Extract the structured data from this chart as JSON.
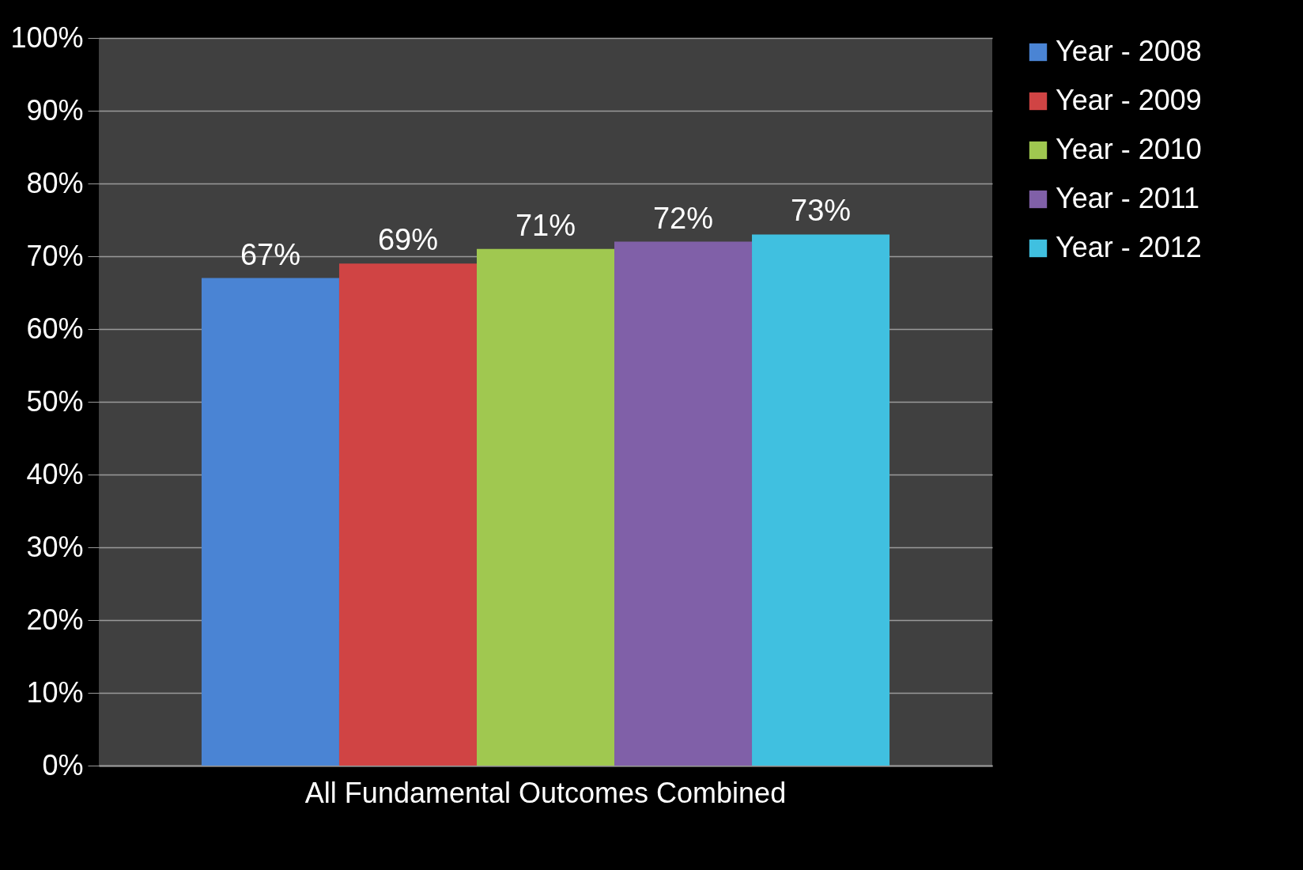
{
  "chart_data": {
    "type": "bar",
    "categories": [
      "All Fundamental Outcomes Combined"
    ],
    "series": [
      {
        "name": "Year - 2008",
        "color": "#4a84d4",
        "values": [
          67
        ],
        "value_labels": [
          "67%"
        ]
      },
      {
        "name": "Year - 2009",
        "color": "#d04444",
        "values": [
          69
        ],
        "value_labels": [
          "69%"
        ]
      },
      {
        "name": "Year - 2010",
        "color": "#a0c850",
        "values": [
          71
        ],
        "value_labels": [
          "71%"
        ]
      },
      {
        "name": "Year - 2011",
        "color": "#8060a8",
        "values": [
          72
        ],
        "value_labels": [
          "72%"
        ]
      },
      {
        "name": "Year - 2012",
        "color": "#40c0e0",
        "values": [
          73
        ],
        "value_labels": [
          "73%"
        ]
      }
    ],
    "ylim": [
      0,
      100
    ],
    "yticks": [
      {
        "value": 0,
        "label": "0%"
      },
      {
        "value": 10,
        "label": "10%"
      },
      {
        "value": 20,
        "label": "20%"
      },
      {
        "value": 30,
        "label": "30%"
      },
      {
        "value": 40,
        "label": "40%"
      },
      {
        "value": 50,
        "label": "50%"
      },
      {
        "value": 60,
        "label": "60%"
      },
      {
        "value": 70,
        "label": "70%"
      },
      {
        "value": 80,
        "label": "80%"
      },
      {
        "value": 90,
        "label": "90%"
      },
      {
        "value": 100,
        "label": "100%"
      }
    ],
    "grid": "y",
    "legend": "right"
  }
}
